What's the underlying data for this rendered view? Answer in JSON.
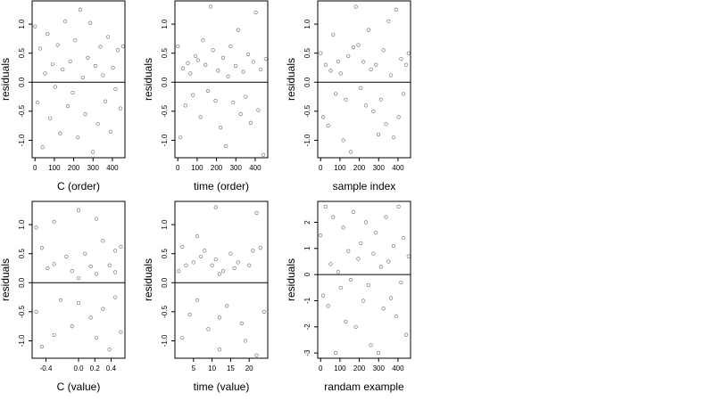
{
  "chart_data": [
    {
      "type": "scatter",
      "xlabel": "C (order)",
      "ylabel": "residuals",
      "xticks": [
        0,
        100,
        200,
        300,
        400
      ],
      "yticks": [
        -1.0,
        -0.5,
        0.0,
        0.5,
        1.0
      ],
      "ytick_labels": [
        "-1.0",
        "-0.5",
        "0.0",
        "0.5",
        "1.0"
      ],
      "xlim": [
        -15,
        465
      ],
      "ylim": [
        -1.3,
        1.4
      ],
      "reference_line_y": 0,
      "series": [
        {
          "x": [
            0,
            13,
            26,
            39,
            52,
            65,
            78,
            91,
            104,
            117,
            130,
            143,
            156,
            169,
            182,
            195,
            208,
            221,
            234,
            247,
            260,
            273,
            286,
            299,
            312,
            325,
            338,
            351,
            364,
            377,
            390,
            403,
            416,
            429,
            442,
            455
          ],
          "y": [
            0.96,
            -0.35,
            0.58,
            -1.12,
            0.15,
            0.83,
            -0.62,
            0.31,
            -0.08,
            0.64,
            -0.88,
            0.22,
            1.05,
            -0.41,
            0.36,
            -0.18,
            0.72,
            -0.95,
            1.25,
            0.08,
            -0.55,
            0.42,
            1.02,
            -1.2,
            0.28,
            -0.72,
            0.61,
            0.12,
            -0.33,
            0.78,
            -0.85,
            0.25,
            -0.12,
            0.55,
            -0.45,
            0.62
          ]
        }
      ]
    },
    {
      "type": "scatter",
      "xlabel": "time (order)",
      "ylabel": "residuals",
      "xticks": [
        0,
        100,
        200,
        300,
        400
      ],
      "yticks": [
        -1.0,
        -0.5,
        0.0,
        0.5,
        1.0
      ],
      "ytick_labels": [
        "-1.0",
        "-0.5",
        "0.0",
        "0.5",
        "1.0"
      ],
      "xlim": [
        -15,
        465
      ],
      "ylim": [
        -1.3,
        1.4
      ],
      "reference_line_y": 0,
      "series": [
        {
          "x": [
            0,
            13,
            26,
            39,
            52,
            65,
            78,
            91,
            104,
            117,
            130,
            143,
            156,
            169,
            182,
            195,
            208,
            221,
            234,
            247,
            260,
            273,
            286,
            299,
            312,
            325,
            338,
            351,
            364,
            377,
            390,
            403,
            416,
            429,
            442,
            455
          ],
          "y": [
            0.62,
            -0.95,
            0.24,
            -0.4,
            0.33,
            0.15,
            -0.22,
            0.45,
            0.38,
            -0.6,
            0.72,
            0.3,
            -0.15,
            1.3,
            0.55,
            -0.32,
            0.2,
            -0.78,
            0.42,
            -1.1,
            0.1,
            0.62,
            -0.35,
            0.28,
            0.9,
            -0.55,
            0.18,
            -0.25,
            0.48,
            -0.7,
            0.35,
            1.2,
            -0.48,
            0.22,
            -1.25,
            0.4
          ]
        }
      ]
    },
    {
      "type": "scatter",
      "xlabel": "sample index",
      "ylabel": "residuals",
      "xticks": [
        0,
        100,
        200,
        300,
        400
      ],
      "yticks": [
        -1.0,
        -0.5,
        0.0,
        0.5,
        1.0
      ],
      "ytick_labels": [
        "-1.0",
        "-0.5",
        "0.0",
        "0.5",
        "1.0"
      ],
      "xlim": [
        -15,
        465
      ],
      "ylim": [
        -1.3,
        1.4
      ],
      "reference_line_y": 0,
      "series": [
        {
          "x": [
            0,
            13,
            26,
            39,
            52,
            65,
            78,
            91,
            104,
            117,
            130,
            143,
            156,
            169,
            182,
            195,
            208,
            221,
            234,
            247,
            260,
            273,
            286,
            299,
            312,
            325,
            338,
            351,
            364,
            377,
            390,
            403,
            416,
            429,
            442,
            455
          ],
          "y": [
            0.5,
            -0.6,
            0.3,
            -0.75,
            0.2,
            0.82,
            -0.2,
            0.36,
            0.15,
            -1.0,
            -0.3,
            0.45,
            -1.2,
            0.6,
            1.3,
            0.64,
            -0.1,
            0.35,
            -0.4,
            0.9,
            0.22,
            -0.5,
            0.3,
            -0.9,
            -0.3,
            0.55,
            -0.72,
            1.05,
            0.12,
            -0.95,
            1.25,
            -0.6,
            0.4,
            -0.2,
            0.3,
            0.5
          ]
        }
      ]
    },
    {
      "type": "scatter",
      "xlabel": "C (value)",
      "ylabel": "residuals",
      "xticks": [
        -0.4,
        0.0,
        0.2,
        0.4
      ],
      "xtick_labels": [
        "-0.4",
        "0.0",
        "0.2",
        "0.4"
      ],
      "yticks": [
        -1.0,
        -0.5,
        0.0,
        0.5,
        1.0
      ],
      "ytick_labels": [
        "-1.0",
        "-0.5",
        "0.0",
        "0.5",
        "1.0"
      ],
      "xlim": [
        -0.57,
        0.57
      ],
      "ylim": [
        -1.3,
        1.4
      ],
      "reference_line_y": 0,
      "series": [
        {
          "x": [
            -0.52,
            -0.52,
            -0.45,
            -0.45,
            -0.38,
            -0.3,
            -0.3,
            -0.3,
            -0.22,
            -0.15,
            -0.08,
            -0.08,
            0.0,
            0.0,
            0.0,
            0.08,
            0.15,
            0.15,
            0.22,
            0.22,
            0.22,
            0.3,
            0.3,
            0.38,
            0.38,
            0.45,
            0.45,
            0.45,
            0.52,
            0.52
          ],
          "y": [
            0.95,
            -0.5,
            0.6,
            -1.1,
            0.25,
            1.05,
            -0.9,
            0.32,
            -0.3,
            0.45,
            0.2,
            -0.75,
            1.25,
            -0.35,
            0.08,
            0.5,
            -0.6,
            0.28,
            1.1,
            -0.95,
            0.15,
            0.72,
            -0.45,
            0.3,
            -1.15,
            0.55,
            -0.25,
            0.18,
            0.62,
            -0.85
          ]
        }
      ]
    },
    {
      "type": "scatter",
      "xlabel": "time (value)",
      "ylabel": "residuals",
      "xticks": [
        5,
        10,
        15,
        20
      ],
      "yticks": [
        -1.0,
        -0.5,
        0.0,
        0.5,
        1.0
      ],
      "ytick_labels": [
        "-1.0",
        "-0.5",
        "0.0",
        "0.5",
        "1.0"
      ],
      "xlim": [
        0,
        25
      ],
      "ylim": [
        -1.3,
        1.4
      ],
      "reference_line_y": 0,
      "series": [
        {
          "x": [
            1,
            2,
            2,
            3,
            4,
            5,
            6,
            6,
            7,
            8,
            9,
            10,
            11,
            11,
            12,
            12,
            12,
            13,
            14,
            15,
            16,
            17,
            18,
            19,
            20,
            21,
            22,
            22,
            23,
            24
          ],
          "y": [
            0.2,
            0.62,
            -0.95,
            0.3,
            -0.55,
            0.35,
            0.8,
            -0.3,
            0.45,
            0.55,
            -0.8,
            0.3,
            1.3,
            0.4,
            -0.6,
            0.15,
            -1.15,
            0.2,
            -0.4,
            0.5,
            0.25,
            0.35,
            -0.7,
            -1.0,
            0.3,
            0.55,
            1.2,
            -1.25,
            0.6,
            -0.5
          ]
        }
      ]
    },
    {
      "type": "scatter",
      "xlabel": "randam example",
      "ylabel": "residuals",
      "xticks": [
        0,
        100,
        200,
        300,
        400
      ],
      "yticks": [
        -3,
        -2,
        -1,
        0,
        1,
        2
      ],
      "xlim": [
        -15,
        465
      ],
      "ylim": [
        -3.2,
        2.8
      ],
      "reference_line_y": 0,
      "series": [
        {
          "x": [
            0,
            13,
            26,
            39,
            52,
            65,
            78,
            91,
            104,
            117,
            130,
            143,
            156,
            169,
            182,
            195,
            208,
            221,
            234,
            247,
            260,
            273,
            286,
            299,
            312,
            325,
            338,
            351,
            364,
            377,
            390,
            403,
            416,
            429,
            442,
            455
          ],
          "y": [
            1.5,
            -0.8,
            2.6,
            -1.2,
            0.4,
            2.2,
            -3.0,
            0.1,
            -0.5,
            1.8,
            -1.8,
            0.9,
            -0.2,
            2.4,
            -2.0,
            0.6,
            1.2,
            -1.0,
            2.0,
            -0.4,
            -2.7,
            0.8,
            1.6,
            -3.0,
            0.3,
            -1.3,
            2.2,
            0.5,
            -0.9,
            1.1,
            -1.6,
            2.6,
            -0.3,
            1.4,
            -2.3,
            0.7
          ]
        }
      ]
    }
  ]
}
